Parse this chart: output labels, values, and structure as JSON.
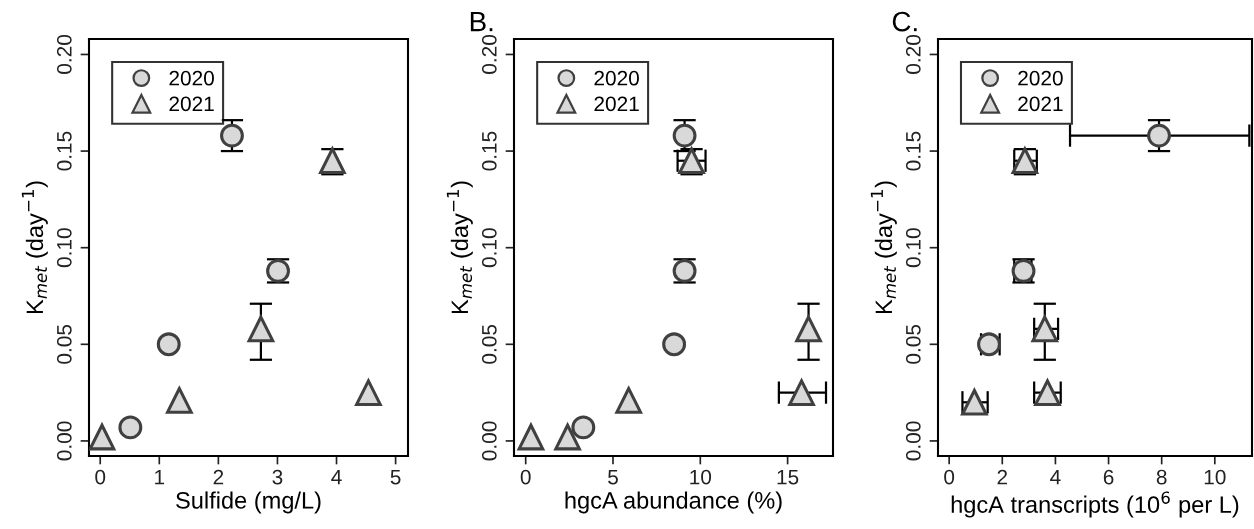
{
  "chart_data": [
    {
      "type": "scatter",
      "xlabel": "Sulfide (mg/L)",
      "ylabel": "K$_{met}$ (day$^{−1}$)",
      "xlim": [
        -0.19,
        5.21
      ],
      "ylim": [
        -0.0078,
        0.208
      ],
      "xticks": [
        0,
        1,
        2,
        3,
        4,
        5
      ],
      "yticks": [
        {
          "value": 0,
          "label": "0.00"
        },
        {
          "value": 0.05,
          "label": "0.05"
        },
        {
          "value": 0.1,
          "label": "0.10"
        },
        {
          "value": 0.15,
          "label": "0.15"
        },
        {
          "value": 0.2,
          "label": "0.20"
        }
      ],
      "legend": "top left",
      "grid": false,
      "series": [
        {
          "name": "2020",
          "color": "#d9d9d9",
          "marker": "circle",
          "x": [
            0.51,
            1.16,
            2.23,
            3.01
          ],
          "values": [
            0.007,
            0.05,
            0.158,
            0.088
          ],
          "errors": [
            null,
            null,
            [
              0.15,
              0.166
            ],
            [
              0.082,
              0.094
            ]
          ]
        },
        {
          "name": "2021",
          "color": "#d9d9d9",
          "marker": "triangle",
          "x": [
            0.03,
            1.34,
            2.72,
            3.93,
            4.54
          ],
          "values": [
            0.002,
            0.021,
            0.058,
            0.145,
            0.025
          ],
          "errors": [
            null,
            null,
            [
              0.042,
              0.071
            ],
            [
              0.138,
              0.151
            ],
            null
          ]
        }
      ]
    },
    {
      "type": "scatter",
      "title": "B.",
      "xlabel": "hgcA abundance (%)",
      "ylabel": "K$_{met}$ (day$^{−1}$)",
      "xlim": [
        -0.67,
        17.6
      ],
      "ylim": [
        -0.0078,
        0.208
      ],
      "xticks": [
        0,
        5,
        10,
        15
      ],
      "yticks": [
        {
          "value": 0,
          "label": "0.00"
        },
        {
          "value": 0.05,
          "label": "0.05"
        },
        {
          "value": 0.1,
          "label": "0.10"
        },
        {
          "value": 0.15,
          "label": "0.15"
        },
        {
          "value": 0.2,
          "label": "0.20"
        }
      ],
      "legend": "top left",
      "grid": false,
      "series": [
        {
          "name": "2020",
          "color": "#d9d9d9",
          "marker": "circle",
          "x": [
            3.3,
            8.5,
            9.1,
            9.1
          ],
          "values": [
            0.007,
            0.05,
            0.158,
            0.088
          ],
          "errors": [
            null,
            null,
            [
              0.15,
              0.166
            ],
            [
              0.082,
              0.094
            ]
          ]
        },
        {
          "name": "2021",
          "color": "#d9d9d9",
          "marker": "triangle",
          "x": [
            0.3,
            2.4,
            5.9,
            16.2,
            15.8,
            9.5
          ],
          "values": [
            0.002,
            0.002,
            0.021,
            0.058,
            0.025,
            0.145
          ],
          "errors": [
            null,
            null,
            null,
            [
              0.042,
              0.071
            ],
            null,
            [
              0.138,
              0.151
            ]
          ],
          "xerrors": [
            null,
            null,
            null,
            null,
            [
              14.5,
              17.2
            ],
            [
              8.7,
              10.3
            ]
          ]
        }
      ]
    },
    {
      "type": "scatter",
      "title": "C.",
      "xlabel": "hgcA transcripts (10$^{6}$ per L)",
      "ylabel": "K$_{met}$ (day$^{−1}$)",
      "xlim": [
        -0.42,
        11.4
      ],
      "ylim": [
        -0.0078,
        0.208
      ],
      "xticks": [
        0,
        2,
        4,
        6,
        8,
        10
      ],
      "yticks": [
        {
          "value": 0,
          "label": "0.00"
        },
        {
          "value": 0.05,
          "label": "0.05"
        },
        {
          "value": 0.1,
          "label": "0.10"
        },
        {
          "value": 0.15,
          "label": "0.15"
        },
        {
          "value": 0.2,
          "label": "0.20"
        }
      ],
      "legend": "top left",
      "grid": false,
      "series": [
        {
          "name": "2020",
          "color": "#d9d9d9",
          "marker": "circle",
          "x": [
            1.5,
            2.8,
            7.9
          ],
          "values": [
            0.05,
            0.088,
            0.158
          ],
          "errors": [
            null,
            [
              0.082,
              0.094
            ],
            [
              0.15,
              0.166
            ]
          ],
          "xerrors": [
            [
              1.2,
              1.9
            ],
            [
              2.45,
              3.1
            ],
            [
              4.55,
              11.3
            ]
          ]
        },
        {
          "name": "2021",
          "color": "#d9d9d9",
          "marker": "triangle",
          "x": [
            0.95,
            2.85,
            3.6,
            3.7
          ],
          "values": [
            0.02,
            0.145,
            0.058,
            0.025
          ],
          "errors": [
            null,
            [
              0.138,
              0.151
            ],
            [
              0.042,
              0.071
            ],
            null
          ],
          "xerrors": [
            [
              0.5,
              1.45
            ],
            [
              2.45,
              3.3
            ],
            [
              3.2,
              4.1
            ],
            [
              3.2,
              4.2
            ]
          ]
        }
      ]
    }
  ]
}
